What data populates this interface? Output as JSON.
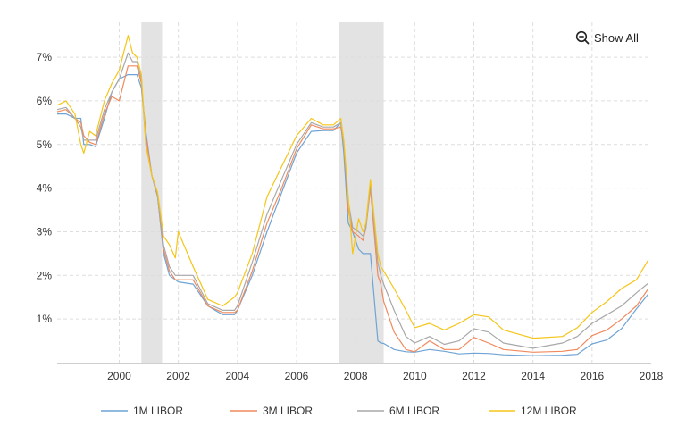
{
  "controls": {
    "show_all_label": "Show All",
    "show_all_icon": "zoom-out-icon"
  },
  "chart_data": {
    "type": "line",
    "title": "",
    "xlabel": "",
    "ylabel": "",
    "xlim": [
      1997.9,
      2018.0
    ],
    "ylim": [
      0,
      7.8
    ],
    "x_ticks": [
      2000,
      2002,
      2004,
      2006,
      2008,
      2010,
      2012,
      2014,
      2016,
      2018
    ],
    "x_tick_labels": [
      "2000",
      "2002",
      "2004",
      "2006",
      "2008",
      "2010",
      "2012",
      "2014",
      "2016",
      "2018"
    ],
    "y_ticks": [
      1,
      2,
      3,
      4,
      5,
      6,
      7
    ],
    "y_tick_labels": [
      "1%",
      "2%",
      "3%",
      "4%",
      "5%",
      "6%",
      "7%"
    ],
    "grid": {
      "x": true,
      "y": true,
      "style": "dashed"
    },
    "legend_position": "bottom",
    "recession_bands": [
      [
        2000.75,
        2001.45
      ],
      [
        2007.45,
        2008.95
      ]
    ],
    "series": [
      {
        "name": "1M LIBOR",
        "color": "#6fa4d4",
        "x": [
          1997.9,
          1998.2,
          1998.5,
          1998.7,
          1998.8,
          1999.0,
          1999.2,
          1999.5,
          1999.75,
          2000.0,
          2000.3,
          2000.45,
          2000.6,
          2000.75,
          2000.9,
          2001.1,
          2001.3,
          2001.5,
          2001.7,
          2001.9,
          2002.0,
          2002.5,
          2003.0,
          2003.5,
          2003.9,
          2004.0,
          2004.5,
          2005.0,
          2005.5,
          2006.0,
          2006.5,
          2006.9,
          2007.0,
          2007.25,
          2007.5,
          2007.6,
          2007.75,
          2007.9,
          2008.1,
          2008.25,
          2008.35,
          2008.5,
          2008.75,
          2008.85,
          2008.95,
          2009.3,
          2009.7,
          2010.0,
          2010.5,
          2011.0,
          2011.5,
          2012.0,
          2012.5,
          2013.0,
          2014.0,
          2015.0,
          2015.5,
          2016.0,
          2016.5,
          2017.0,
          2017.5,
          2017.9
        ],
        "y": [
          5.7,
          5.7,
          5.6,
          5.6,
          5.0,
          5.0,
          4.95,
          5.6,
          6.2,
          6.5,
          6.6,
          6.6,
          6.6,
          6.3,
          5.3,
          4.3,
          3.8,
          2.5,
          2.0,
          1.9,
          1.85,
          1.8,
          1.3,
          1.1,
          1.1,
          1.2,
          2.0,
          3.0,
          3.9,
          4.8,
          5.3,
          5.32,
          5.32,
          5.32,
          5.5,
          4.8,
          3.2,
          3.0,
          2.6,
          2.5,
          2.5,
          2.5,
          0.5,
          0.45,
          0.44,
          0.3,
          0.25,
          0.24,
          0.3,
          0.26,
          0.2,
          0.22,
          0.21,
          0.18,
          0.16,
          0.17,
          0.19,
          0.43,
          0.52,
          0.78,
          1.23,
          1.57
        ]
      },
      {
        "name": "3M LIBOR",
        "color": "#f08a5d",
        "x": [
          1997.9,
          1998.2,
          1998.5,
          1998.7,
          1998.8,
          1999.0,
          1999.2,
          1999.5,
          1999.75,
          2000.0,
          2000.3,
          2000.45,
          2000.6,
          2000.75,
          2000.9,
          2001.1,
          2001.3,
          2001.5,
          2001.7,
          2001.9,
          2002.0,
          2002.5,
          2003.0,
          2003.5,
          2003.9,
          2004.0,
          2004.5,
          2005.0,
          2005.5,
          2006.0,
          2006.5,
          2006.9,
          2007.0,
          2007.25,
          2007.5,
          2007.6,
          2007.75,
          2007.9,
          2008.1,
          2008.25,
          2008.35,
          2008.5,
          2008.75,
          2008.85,
          2008.95,
          2009.3,
          2009.7,
          2010.0,
          2010.5,
          2011.0,
          2011.5,
          2012.0,
          2012.5,
          2013.0,
          2014.0,
          2015.0,
          2015.5,
          2016.0,
          2016.5,
          2017.0,
          2017.5,
          2017.9
        ],
        "y": [
          5.75,
          5.8,
          5.6,
          5.5,
          5.2,
          5.05,
          5.0,
          5.7,
          6.1,
          6.0,
          6.8,
          6.8,
          6.8,
          6.4,
          5.2,
          4.3,
          3.8,
          2.6,
          2.1,
          1.9,
          1.9,
          1.9,
          1.3,
          1.15,
          1.15,
          1.2,
          2.1,
          3.2,
          4.0,
          4.9,
          5.45,
          5.36,
          5.36,
          5.36,
          5.4,
          5.0,
          3.5,
          3.0,
          2.9,
          2.8,
          3.1,
          4.0,
          2.0,
          1.8,
          1.4,
          0.7,
          0.3,
          0.25,
          0.5,
          0.3,
          0.3,
          0.58,
          0.45,
          0.3,
          0.24,
          0.26,
          0.3,
          0.62,
          0.75,
          1.0,
          1.3,
          1.69
        ]
      },
      {
        "name": "6M LIBOR",
        "color": "#a8a8a8",
        "x": [
          1997.9,
          1998.2,
          1998.5,
          1998.7,
          1998.8,
          1999.0,
          1999.2,
          1999.5,
          1999.75,
          2000.0,
          2000.3,
          2000.45,
          2000.6,
          2000.75,
          2000.9,
          2001.1,
          2001.3,
          2001.5,
          2001.7,
          2001.9,
          2002.0,
          2002.5,
          2003.0,
          2003.5,
          2003.9,
          2004.0,
          2004.5,
          2005.0,
          2005.5,
          2006.0,
          2006.5,
          2006.9,
          2007.0,
          2007.25,
          2007.5,
          2007.6,
          2007.75,
          2007.9,
          2008.1,
          2008.25,
          2008.35,
          2008.5,
          2008.75,
          2008.85,
          2008.95,
          2009.3,
          2009.7,
          2010.0,
          2010.5,
          2011.0,
          2011.5,
          2012.0,
          2012.5,
          2013.0,
          2014.0,
          2015.0,
          2015.5,
          2016.0,
          2016.5,
          2017.0,
          2017.5,
          2017.9
        ],
        "y": [
          5.8,
          5.85,
          5.6,
          5.4,
          5.1,
          5.1,
          5.1,
          5.8,
          6.2,
          6.5,
          7.1,
          6.9,
          6.9,
          6.5,
          5.0,
          4.3,
          3.8,
          2.7,
          2.2,
          2.0,
          2.0,
          2.0,
          1.35,
          1.2,
          1.2,
          1.3,
          2.3,
          3.4,
          4.2,
          5.0,
          5.5,
          5.4,
          5.4,
          5.4,
          5.5,
          5.0,
          3.7,
          3.1,
          3.0,
          2.9,
          3.1,
          4.1,
          2.3,
          2.0,
          1.8,
          1.2,
          0.6,
          0.45,
          0.6,
          0.42,
          0.5,
          0.78,
          0.7,
          0.45,
          0.33,
          0.45,
          0.6,
          0.9,
          1.1,
          1.3,
          1.6,
          1.82
        ]
      },
      {
        "name": "12M LIBOR",
        "color": "#f5c518",
        "x": [
          1997.9,
          1998.2,
          1998.5,
          1998.7,
          1998.8,
          1999.0,
          1999.2,
          1999.5,
          1999.75,
          2000.0,
          2000.3,
          2000.45,
          2000.6,
          2000.75,
          2000.9,
          2001.1,
          2001.3,
          2001.5,
          2001.7,
          2001.9,
          2002.0,
          2002.5,
          2003.0,
          2003.5,
          2003.9,
          2004.0,
          2004.5,
          2005.0,
          2005.5,
          2006.0,
          2006.5,
          2006.9,
          2007.0,
          2007.25,
          2007.5,
          2007.6,
          2007.75,
          2007.9,
          2008.1,
          2008.25,
          2008.35,
          2008.5,
          2008.75,
          2008.85,
          2008.95,
          2009.3,
          2009.7,
          2010.0,
          2010.5,
          2011.0,
          2011.5,
          2012.0,
          2012.5,
          2013.0,
          2014.0,
          2015.0,
          2015.5,
          2016.0,
          2016.5,
          2017.0,
          2017.5,
          2017.9
        ],
        "y": [
          5.9,
          6.0,
          5.7,
          5.0,
          4.8,
          5.3,
          5.2,
          6.0,
          6.4,
          6.7,
          7.5,
          7.1,
          7.0,
          6.6,
          5.0,
          4.3,
          3.9,
          2.9,
          2.7,
          2.4,
          3.0,
          2.2,
          1.45,
          1.3,
          1.5,
          1.6,
          2.5,
          3.8,
          4.5,
          5.2,
          5.6,
          5.45,
          5.45,
          5.45,
          5.6,
          5.1,
          3.8,
          2.5,
          3.3,
          3.0,
          3.2,
          4.2,
          2.5,
          2.2,
          2.1,
          1.7,
          1.2,
          0.8,
          0.9,
          0.75,
          0.9,
          1.1,
          1.05,
          0.75,
          0.56,
          0.6,
          0.8,
          1.15,
          1.4,
          1.7,
          1.9,
          2.35
        ]
      }
    ]
  }
}
